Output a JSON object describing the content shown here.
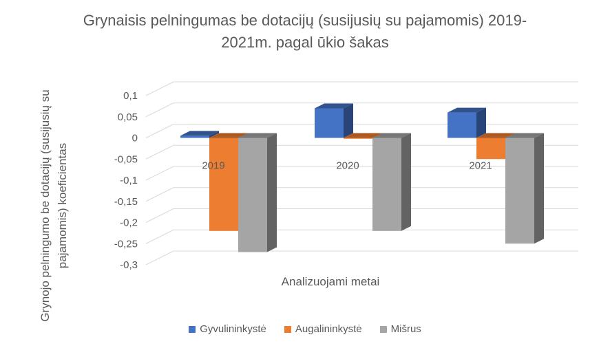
{
  "chart_data": {
    "type": "bar",
    "title": "Grynaisis pelningumas be dotacijų (susijusių su pajamomis) 2019-2021m. pagal ūkio šakas",
    "xlabel": "Analizuojami metai",
    "ylabel": "Grynojo pelningumo be dotacijų (susijusių su pajamomis) koeficientas",
    "categories": [
      "2019",
      "2020",
      "2021"
    ],
    "series": [
      {
        "name": "Gyvulininkystė",
        "values": [
          0.005,
          0.07,
          0.06
        ],
        "color": "#4472C4"
      },
      {
        "name": "Augalininkystė",
        "values": [
          -0.22,
          -0.002,
          -0.05
        ],
        "color": "#ED7D31"
      },
      {
        "name": "Mišrus",
        "values": [
          -0.27,
          -0.22,
          -0.25
        ],
        "color": "#A5A5A5"
      }
    ],
    "ylim": [
      -0.3,
      0.1
    ],
    "yticks": [
      "0,1",
      "0,05",
      "0",
      "-0,05",
      "-0,1",
      "-0,15",
      "-0,2",
      "-0,25",
      "-0,3"
    ],
    "grid": true,
    "legend": "bottom",
    "style": "3d-clustered-column"
  }
}
